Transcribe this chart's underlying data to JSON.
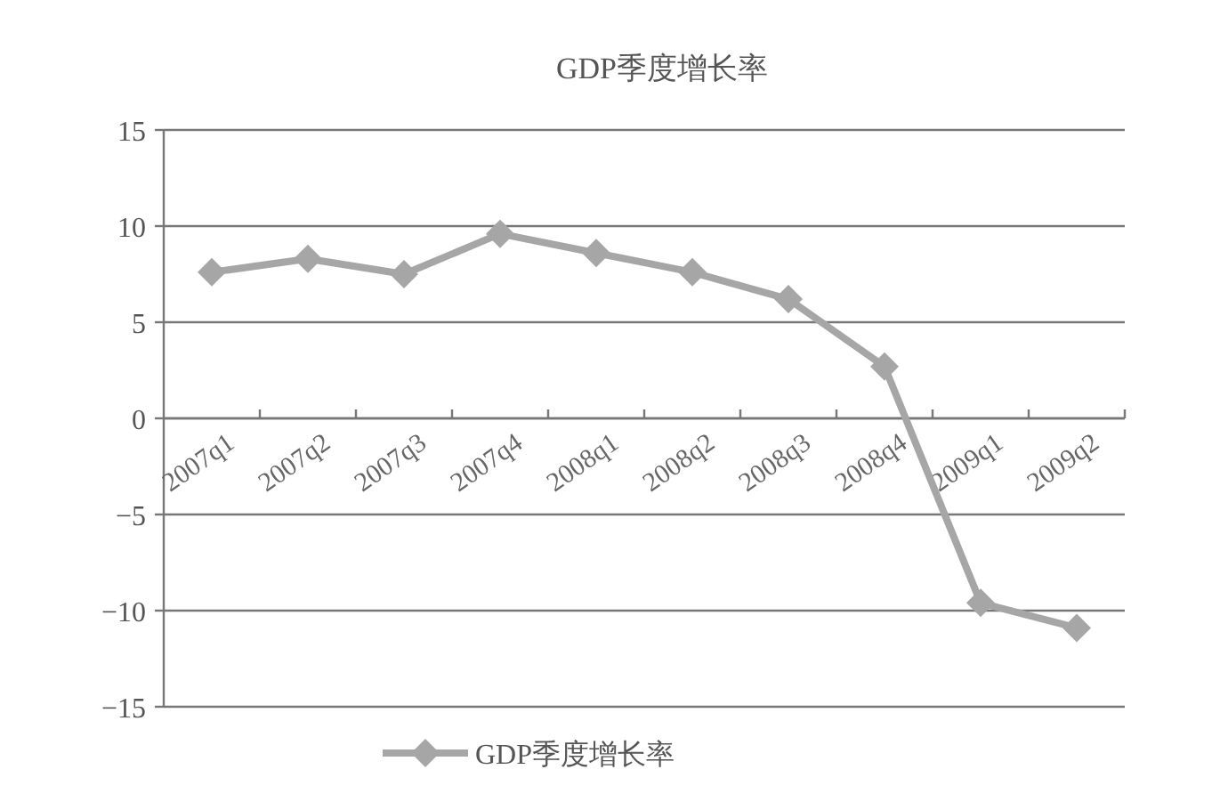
{
  "chart_data": {
    "type": "line",
    "title": "GDP季度增长率",
    "categories": [
      "2007q1",
      "2007q2",
      "2007q3",
      "2007q4",
      "2008q1",
      "2008q2",
      "2008q3",
      "2008q4",
      "2009q1",
      "2009q2"
    ],
    "series": [
      {
        "name": "GDP季度增长率",
        "color": "#a6a6a6",
        "values": [
          7.6,
          8.3,
          7.5,
          9.6,
          8.6,
          7.6,
          6.2,
          2.7,
          -9.6,
          -10.9
        ]
      }
    ],
    "ylim": [
      -15,
      15
    ],
    "yticks": [
      -15,
      -10,
      -5,
      0,
      5,
      10,
      15
    ],
    "grid": "y",
    "legend": "bottom",
    "marker": "diamond",
    "line_style": "solid"
  }
}
